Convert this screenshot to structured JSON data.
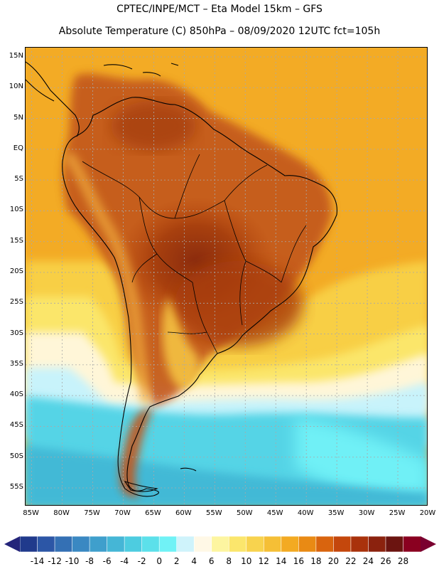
{
  "header": {
    "line1": "CPTEC/INPE/MCT –  Eta Model 15km – GFS",
    "line2": "Absolute Temperature (C) 850hPa – 08/09/2020 12UTC fct=105h"
  },
  "axes": {
    "lat_labels": [
      "15N",
      "10N",
      "5N",
      "EQ",
      "5S",
      "10S",
      "15S",
      "20S",
      "25S",
      "30S",
      "35S",
      "40S",
      "45S",
      "50S",
      "55S"
    ],
    "lat_values": [
      15,
      10,
      5,
      0,
      -5,
      -10,
      -15,
      -20,
      -25,
      -30,
      -35,
      -40,
      -45,
      -50,
      -55
    ],
    "lon_labels": [
      "85W",
      "80W",
      "75W",
      "70W",
      "65W",
      "60W",
      "55W",
      "50W",
      "45W",
      "40W",
      "35W",
      "30W",
      "25W",
      "20W"
    ],
    "lon_values": [
      -85,
      -80,
      -75,
      -70,
      -65,
      -60,
      -55,
      -50,
      -45,
      -40,
      -35,
      -30,
      -25,
      -20
    ],
    "lat_range": [
      -58,
      16.5
    ],
    "lon_range": [
      -86,
      -20
    ]
  },
  "colorbar": {
    "labels": [
      "-14",
      "-12",
      "-10",
      "-8",
      "-6",
      "-4",
      "-2",
      "0",
      "2",
      "4",
      "6",
      "8",
      "10",
      "12",
      "14",
      "16",
      "18",
      "20",
      "22",
      "24",
      "26",
      "28"
    ],
    "colors": [
      "#203a8c",
      "#2c56a6",
      "#3470b4",
      "#3a88c2",
      "#3f9fcc",
      "#45b6d6",
      "#4dcce0",
      "#5ce0ea",
      "#70f2f6",
      "#cff3fb",
      "#fff8e6",
      "#fdf5a0",
      "#fbe66c",
      "#f8d34e",
      "#f5bf36",
      "#f3aa22",
      "#e98a14",
      "#d9640e",
      "#c4470c",
      "#a9320c",
      "#8b220e",
      "#6b1410",
      "#8a0020"
    ],
    "left_arrow_color": "#24247a",
    "right_arrow_color": "#7a0030"
  },
  "palette": {
    "ocean_warm": "#f5b12a",
    "coast": "#000000",
    "grid": "#a9a9a9"
  }
}
